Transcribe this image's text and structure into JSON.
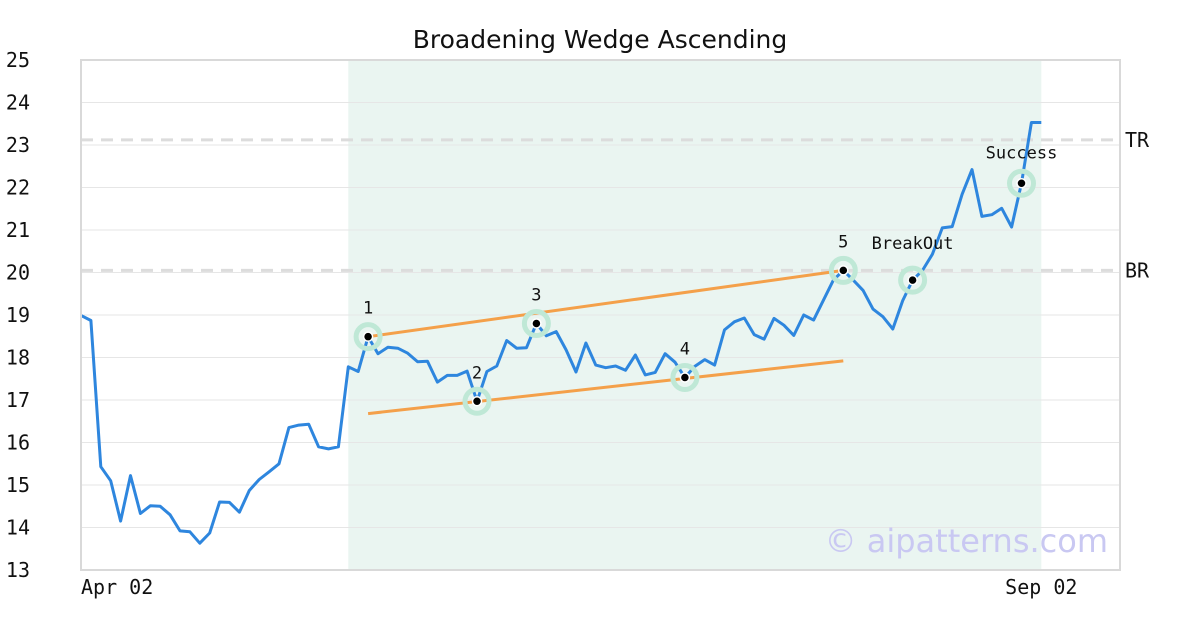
{
  "chart_data": {
    "type": "line",
    "title": "Broadening Wedge Ascending",
    "xlabel": "",
    "ylabel": "",
    "ylim": [
      13,
      25
    ],
    "yticks": [
      13,
      14,
      15,
      16,
      17,
      18,
      19,
      20,
      21,
      22,
      23,
      24,
      25
    ],
    "xticks": [
      {
        "label": "Apr 02",
        "index": 0
      },
      {
        "label": "Sep 02",
        "index": 97
      }
    ],
    "grid": true,
    "series": [
      {
        "values": [
          18.99,
          18.87,
          15.43,
          15.1,
          14.15,
          15.22,
          14.33,
          14.51,
          14.5,
          14.3,
          13.92,
          13.9,
          13.63,
          13.87,
          14.6,
          14.59,
          14.36,
          14.87,
          15.13,
          15.31,
          15.5,
          16.35,
          16.41,
          16.43,
          15.9,
          15.85,
          15.9,
          17.78,
          17.67,
          18.49,
          18.09,
          18.24,
          18.22,
          18.1,
          17.9,
          17.91,
          17.42,
          17.58,
          17.58,
          17.68,
          16.97,
          17.67,
          17.8,
          18.4,
          18.22,
          18.23,
          18.8,
          18.51,
          18.61,
          18.18,
          17.66,
          18.34,
          17.82,
          17.76,
          17.8,
          17.7,
          18.06,
          17.59,
          17.65,
          18.09,
          17.89,
          17.53,
          17.79,
          17.95,
          17.82,
          18.65,
          18.84,
          18.93,
          18.54,
          18.43,
          18.92,
          18.76,
          18.52,
          19.0,
          18.88,
          19.35,
          19.82,
          20.05,
          19.82,
          19.58,
          19.14,
          18.96,
          18.67,
          19.34,
          19.82,
          20.05,
          20.43,
          21.05,
          21.08,
          21.84,
          22.42,
          21.32,
          21.36,
          21.51,
          21.07,
          22.1,
          23.53,
          23.53
        ],
        "color": "#2e86de"
      }
    ],
    "pattern_region": {
      "start_index": 27,
      "end_index": 97,
      "color": "#eaf5f1"
    },
    "trendlines": [
      {
        "x1": 29,
        "y1": 18.49,
        "x2": 77,
        "y2": 20.05,
        "color": "#f4a04a"
      },
      {
        "x1": 29,
        "y1": 16.68,
        "x2": 77,
        "y2": 17.92,
        "color": "#f4a04a"
      }
    ],
    "levels": [
      {
        "label": "TR",
        "value": 23.12
      },
      {
        "label": "BR",
        "value": 20.05
      }
    ],
    "points": [
      {
        "label": "1",
        "index": 29,
        "value": 18.49
      },
      {
        "label": "2",
        "index": 40,
        "value": 16.97
      },
      {
        "label": "3",
        "index": 46,
        "value": 18.8
      },
      {
        "label": "4",
        "index": 61,
        "value": 17.53
      },
      {
        "label": "5",
        "index": 77,
        "value": 20.05
      },
      {
        "label": "BreakOut",
        "index": 84,
        "value": 19.82
      },
      {
        "label": "Success",
        "index": 95,
        "value": 22.1
      }
    ]
  },
  "watermark": "© aipatterns.com"
}
